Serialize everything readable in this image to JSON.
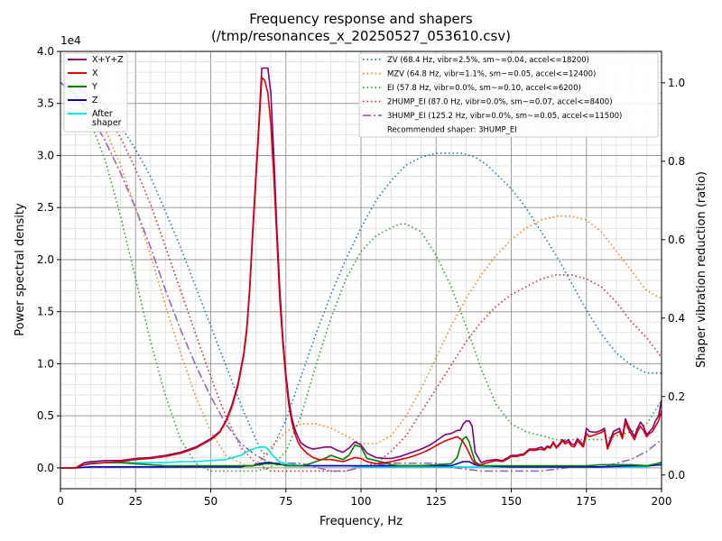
{
  "chart_data": {
    "type": "line",
    "title": "Frequency response and shapers",
    "subtitle": "(/tmp/resonances_x_20250527_053610.csv)",
    "xlabel": "Frequency, Hz",
    "ylabel": "Power spectral density",
    "y2label": "Shaper vibration reduction (ratio)",
    "y_exponent_label": "1e4",
    "xlim": [
      0,
      200
    ],
    "ylim": [
      -0.2,
      4.0
    ],
    "y2lim": [
      -0.035,
      1.08
    ],
    "grid": true,
    "x_ticks": [
      0,
      25,
      50,
      75,
      100,
      125,
      150,
      175,
      200
    ],
    "y_ticks": [
      "0.0",
      "0.5",
      "1.0",
      "1.5",
      "2.0",
      "2.5",
      "3.0",
      "3.5",
      "4.0"
    ],
    "y2_ticks": [
      "0.0",
      "0.2",
      "0.4",
      "0.6",
      "0.8",
      "1.0"
    ],
    "legend_left_position": "top-left",
    "legend_right_position": "top-right",
    "psd_series": [
      {
        "name": "X+Y+Z",
        "color": "#800080",
        "x": [
          0,
          5,
          8,
          10,
          15,
          20,
          25,
          30,
          35,
          40,
          45,
          50,
          53,
          55,
          57,
          59,
          61,
          62,
          63,
          64,
          65,
          66,
          67,
          68,
          69,
          70,
          71,
          72,
          73,
          74,
          75,
          76,
          77,
          78,
          79,
          80,
          82,
          84,
          86,
          88,
          90,
          92,
          94,
          96,
          98,
          100,
          102,
          105,
          108,
          110,
          113,
          116,
          120,
          123,
          126,
          128,
          130,
          132,
          133,
          134,
          135,
          136,
          137,
          138,
          140,
          142,
          145,
          147,
          149,
          150,
          152,
          153,
          154,
          156,
          158,
          160,
          161,
          162,
          163,
          164,
          165,
          166,
          167,
          168,
          169,
          170,
          171,
          172,
          173,
          174,
          175,
          176,
          178,
          180,
          181,
          182,
          184,
          186,
          187,
          188,
          189,
          190,
          191,
          192,
          193,
          194,
          195,
          196,
          197,
          198,
          199,
          200
        ],
        "y": [
          0.0,
          0.0,
          0.05,
          0.06,
          0.07,
          0.07,
          0.09,
          0.1,
          0.12,
          0.15,
          0.2,
          0.28,
          0.35,
          0.45,
          0.6,
          0.8,
          1.1,
          1.35,
          1.75,
          2.3,
          2.8,
          3.3,
          3.84,
          3.84,
          3.84,
          3.6,
          3.0,
          2.3,
          1.7,
          1.25,
          0.9,
          0.65,
          0.48,
          0.37,
          0.3,
          0.24,
          0.2,
          0.18,
          0.19,
          0.2,
          0.2,
          0.17,
          0.15,
          0.19,
          0.25,
          0.22,
          0.14,
          0.1,
          0.09,
          0.09,
          0.11,
          0.14,
          0.18,
          0.22,
          0.28,
          0.32,
          0.33,
          0.36,
          0.36,
          0.42,
          0.45,
          0.45,
          0.4,
          0.15,
          0.05,
          0.07,
          0.08,
          0.07,
          0.1,
          0.12,
          0.12,
          0.13,
          0.13,
          0.18,
          0.18,
          0.2,
          0.18,
          0.21,
          0.2,
          0.25,
          0.2,
          0.23,
          0.27,
          0.25,
          0.27,
          0.23,
          0.22,
          0.28,
          0.25,
          0.22,
          0.38,
          0.35,
          0.34,
          0.36,
          0.38,
          0.2,
          0.35,
          0.38,
          0.3,
          0.47,
          0.4,
          0.35,
          0.3,
          0.38,
          0.44,
          0.4,
          0.32,
          0.35,
          0.38,
          0.45,
          0.5,
          0.65
        ]
      },
      {
        "name": "X",
        "color": "#e00000",
        "x": [
          0,
          5,
          8,
          10,
          15,
          20,
          25,
          30,
          35,
          40,
          45,
          50,
          53,
          55,
          57,
          59,
          61,
          62,
          63,
          64,
          65,
          66,
          67,
          68,
          69,
          70,
          71,
          72,
          73,
          74,
          75,
          76,
          77,
          78,
          79,
          80,
          82,
          84,
          86,
          88,
          90,
          92,
          94,
          96,
          98,
          100,
          102,
          105,
          108,
          110,
          113,
          116,
          120,
          123,
          126,
          128,
          130,
          132,
          133,
          134,
          135,
          136,
          137,
          138,
          140,
          142,
          145,
          147,
          149,
          150,
          152,
          153,
          154,
          156,
          158,
          160,
          161,
          162,
          163,
          164,
          165,
          166,
          167,
          168,
          169,
          170,
          171,
          172,
          173,
          174,
          175,
          176,
          178,
          180,
          181,
          182,
          184,
          186,
          187,
          188,
          189,
          190,
          191,
          192,
          193,
          194,
          195,
          196,
          197,
          198,
          199,
          200
        ],
        "y": [
          0.0,
          0.0,
          0.03,
          0.04,
          0.05,
          0.06,
          0.08,
          0.09,
          0.11,
          0.14,
          0.19,
          0.27,
          0.34,
          0.44,
          0.58,
          0.78,
          1.08,
          1.32,
          1.72,
          2.25,
          2.75,
          3.25,
          3.75,
          3.72,
          3.6,
          3.3,
          2.8,
          2.2,
          1.6,
          1.2,
          0.85,
          0.6,
          0.44,
          0.33,
          0.25,
          0.2,
          0.14,
          0.1,
          0.08,
          0.08,
          0.08,
          0.07,
          0.06,
          0.08,
          0.1,
          0.09,
          0.06,
          0.04,
          0.05,
          0.06,
          0.08,
          0.1,
          0.14,
          0.18,
          0.23,
          0.26,
          0.28,
          0.3,
          0.28,
          0.25,
          0.2,
          0.14,
          0.08,
          0.04,
          0.03,
          0.05,
          0.07,
          0.06,
          0.09,
          0.11,
          0.11,
          0.12,
          0.12,
          0.17,
          0.17,
          0.18,
          0.17,
          0.2,
          0.19,
          0.24,
          0.19,
          0.22,
          0.26,
          0.23,
          0.25,
          0.21,
          0.2,
          0.26,
          0.23,
          0.2,
          0.33,
          0.3,
          0.32,
          0.34,
          0.36,
          0.18,
          0.32,
          0.35,
          0.28,
          0.44,
          0.37,
          0.32,
          0.27,
          0.35,
          0.4,
          0.36,
          0.3,
          0.33,
          0.35,
          0.4,
          0.45,
          0.55
        ]
      },
      {
        "name": "Y",
        "color": "#008000",
        "x": [
          0,
          5,
          8,
          10,
          15,
          20,
          25,
          30,
          35,
          40,
          45,
          50,
          55,
          60,
          62,
          64,
          66,
          67,
          68,
          69,
          70,
          71,
          72,
          73,
          74,
          75,
          76,
          78,
          80,
          82,
          84,
          86,
          88,
          90,
          92,
          94,
          96,
          98,
          100,
          102,
          105,
          108,
          110,
          113,
          116,
          120,
          125,
          130,
          132,
          133,
          134,
          135,
          136,
          137,
          138,
          140,
          145,
          150,
          155,
          160,
          165,
          170,
          175,
          180,
          185,
          190,
          195,
          200
        ],
        "y": [
          0.0,
          0.0,
          0.03,
          0.04,
          0.05,
          0.05,
          0.04,
          0.03,
          0.02,
          0.02,
          0.02,
          0.02,
          0.02,
          0.02,
          0.02,
          0.02,
          0.03,
          0.03,
          0.04,
          0.04,
          0.04,
          0.04,
          0.03,
          0.03,
          0.03,
          0.02,
          0.02,
          0.02,
          0.02,
          0.03,
          0.05,
          0.07,
          0.09,
          0.12,
          0.1,
          0.08,
          0.12,
          0.22,
          0.2,
          0.09,
          0.07,
          0.05,
          0.03,
          0.02,
          0.02,
          0.02,
          0.03,
          0.04,
          0.1,
          0.2,
          0.28,
          0.3,
          0.25,
          0.15,
          0.06,
          0.02,
          0.02,
          0.02,
          0.02,
          0.02,
          0.02,
          0.02,
          0.02,
          0.03,
          0.03,
          0.03,
          0.02,
          0.05
        ]
      },
      {
        "name": "Z",
        "color": "#0000c0",
        "x": [
          0,
          5,
          10,
          15,
          20,
          25,
          30,
          40,
          50,
          55,
          60,
          62,
          64,
          66,
          68,
          70,
          72,
          74,
          76,
          80,
          90,
          100,
          110,
          120,
          125,
          130,
          132,
          134,
          136,
          138,
          140,
          150,
          160,
          170,
          180,
          190,
          195,
          200
        ],
        "y": [
          0.0,
          0.0,
          0.01,
          0.01,
          0.01,
          0.01,
          0.01,
          0.01,
          0.01,
          0.01,
          0.01,
          0.02,
          0.02,
          0.04,
          0.05,
          0.05,
          0.04,
          0.03,
          0.02,
          0.02,
          0.02,
          0.02,
          0.02,
          0.02,
          0.02,
          0.02,
          0.04,
          0.06,
          0.06,
          0.03,
          0.02,
          0.01,
          0.01,
          0.01,
          0.01,
          0.02,
          0.02,
          0.03
        ]
      },
      {
        "name": "After\nshaper",
        "color": "#00e5ee",
        "x": [
          0,
          5,
          10,
          15,
          20,
          25,
          30,
          35,
          40,
          45,
          50,
          55,
          60,
          63,
          65,
          67,
          68,
          69,
          70,
          71,
          72,
          73,
          74,
          75,
          78,
          80,
          85,
          90,
          95,
          100,
          110,
          120,
          130,
          140,
          150,
          160,
          170,
          180,
          190,
          195,
          198,
          200
        ],
        "y": [
          0.0,
          0.0,
          0.05,
          0.05,
          0.05,
          0.05,
          0.05,
          0.05,
          0.06,
          0.06,
          0.07,
          0.08,
          0.12,
          0.17,
          0.19,
          0.2,
          0.2,
          0.18,
          0.14,
          0.11,
          0.08,
          0.06,
          0.05,
          0.04,
          0.03,
          0.02,
          0.02,
          0.02,
          0.02,
          0.01,
          0.01,
          0.01,
          0.01,
          0.01,
          0.01,
          0.01,
          0.01,
          0.01,
          0.01,
          0.01,
          0.03,
          0.06
        ]
      }
    ],
    "shaper_series": [
      {
        "name": "ZV (68.4 Hz, vibr=2.5%, sm~=0.04, accel<=18200)",
        "color": "#1f77b4",
        "x": [
          0,
          5,
          10,
          15,
          20,
          25,
          30,
          35,
          40,
          45,
          50,
          55,
          60,
          65,
          67,
          68.4,
          70,
          75,
          80,
          85,
          90,
          95,
          100,
          105,
          110,
          115,
          120,
          125,
          130,
          134,
          138,
          142,
          146,
          150,
          155,
          160,
          165,
          170,
          175,
          180,
          185,
          190,
          195,
          200
        ],
        "y": [
          1.0,
          0.99,
          0.97,
          0.94,
          0.89,
          0.83,
          0.76,
          0.67,
          0.58,
          0.48,
          0.38,
          0.28,
          0.18,
          0.09,
          0.06,
          0.05,
          0.06,
          0.14,
          0.25,
          0.36,
          0.46,
          0.55,
          0.63,
          0.7,
          0.75,
          0.79,
          0.81,
          0.82,
          0.82,
          0.82,
          0.81,
          0.79,
          0.76,
          0.73,
          0.68,
          0.62,
          0.56,
          0.49,
          0.42,
          0.36,
          0.31,
          0.28,
          0.26,
          0.26
        ]
      },
      {
        "name": "MZV (64.8 Hz, vibr=1.1%, sm~=0.05, accel<=12400)",
        "color": "#ff7f0e",
        "x": [
          0,
          5,
          10,
          15,
          20,
          25,
          30,
          35,
          40,
          45,
          50,
          55,
          60,
          63,
          65,
          67,
          70,
          75,
          80,
          85,
          90,
          95,
          100,
          105,
          110,
          115,
          120,
          125,
          130,
          135,
          140,
          145,
          150,
          155,
          160,
          165,
          170,
          175,
          180,
          185,
          190,
          195,
          200
        ],
        "y": [
          1.0,
          0.98,
          0.94,
          0.88,
          0.79,
          0.68,
          0.56,
          0.43,
          0.31,
          0.2,
          0.11,
          0.05,
          0.03,
          0.02,
          0.03,
          0.04,
          0.07,
          0.11,
          0.13,
          0.13,
          0.12,
          0.1,
          0.08,
          0.08,
          0.1,
          0.15,
          0.22,
          0.3,
          0.38,
          0.45,
          0.51,
          0.56,
          0.6,
          0.63,
          0.65,
          0.66,
          0.66,
          0.65,
          0.62,
          0.57,
          0.52,
          0.47,
          0.45
        ]
      },
      {
        "name": "EI (57.8 Hz, vibr=0.0%, sm~=0.10, accel<=6200)",
        "color": "#2ca02c",
        "x": [
          0,
          5,
          10,
          15,
          20,
          25,
          30,
          35,
          40,
          45,
          50,
          55,
          57.8,
          60,
          65,
          70,
          75,
          80,
          85,
          90,
          95,
          100,
          105,
          110,
          113,
          115,
          120,
          125,
          130,
          135,
          140,
          145,
          150,
          155,
          160,
          165,
          170,
          175,
          180,
          185,
          190,
          195,
          200
        ],
        "y": [
          1.0,
          0.97,
          0.9,
          0.8,
          0.66,
          0.5,
          0.34,
          0.2,
          0.09,
          0.03,
          0.01,
          0.01,
          0.01,
          0.01,
          0.01,
          0.02,
          0.06,
          0.15,
          0.28,
          0.4,
          0.5,
          0.57,
          0.61,
          0.63,
          0.64,
          0.64,
          0.62,
          0.56,
          0.48,
          0.38,
          0.27,
          0.18,
          0.13,
          0.11,
          0.1,
          0.09,
          0.09,
          0.09,
          0.09,
          0.1,
          0.11,
          0.13,
          0.19
        ]
      },
      {
        "name": "2HUMP_EI (87.0 Hz, vibr=0.0%, sm~=0.07, accel<=8400)",
        "color": "#d62728",
        "x": [
          0,
          5,
          10,
          15,
          20,
          25,
          30,
          35,
          40,
          45,
          50,
          55,
          60,
          65,
          70,
          75,
          80,
          85,
          90,
          95,
          100,
          105,
          110,
          115,
          120,
          125,
          130,
          135,
          140,
          145,
          150,
          155,
          160,
          165,
          170,
          175,
          180,
          185,
          190,
          195,
          200
        ],
        "y": [
          1.0,
          0.99,
          0.96,
          0.92,
          0.86,
          0.78,
          0.69,
          0.58,
          0.47,
          0.36,
          0.25,
          0.15,
          0.07,
          0.03,
          0.01,
          0.01,
          0.01,
          0.01,
          0.01,
          0.01,
          0.02,
          0.03,
          0.06,
          0.1,
          0.16,
          0.22,
          0.28,
          0.34,
          0.39,
          0.43,
          0.46,
          0.48,
          0.5,
          0.51,
          0.51,
          0.5,
          0.48,
          0.44,
          0.39,
          0.35,
          0.3
        ]
      },
      {
        "name": "3HUMP_EI (125.2 Hz, vibr=0.0%, sm~=0.05, accel<=11500)",
        "color": "#9467bd",
        "x": [
          0,
          5,
          10,
          15,
          20,
          25,
          30,
          35,
          40,
          45,
          50,
          55,
          60,
          65,
          70,
          75,
          80,
          85,
          90,
          95,
          100,
          110,
          120,
          125,
          130,
          140,
          150,
          160,
          170,
          180,
          190,
          195,
          200
        ],
        "y": [
          1.0,
          0.97,
          0.92,
          0.85,
          0.77,
          0.68,
          0.58,
          0.47,
          0.37,
          0.28,
          0.2,
          0.13,
          0.08,
          0.05,
          0.03,
          0.03,
          0.03,
          0.02,
          0.01,
          0.01,
          0.02,
          0.03,
          0.03,
          0.03,
          0.02,
          0.01,
          0.01,
          0.01,
          0.02,
          0.02,
          0.04,
          0.06,
          0.09
        ]
      }
    ],
    "recommended_text": "Recommended shaper: 3HUMP_EI"
  }
}
